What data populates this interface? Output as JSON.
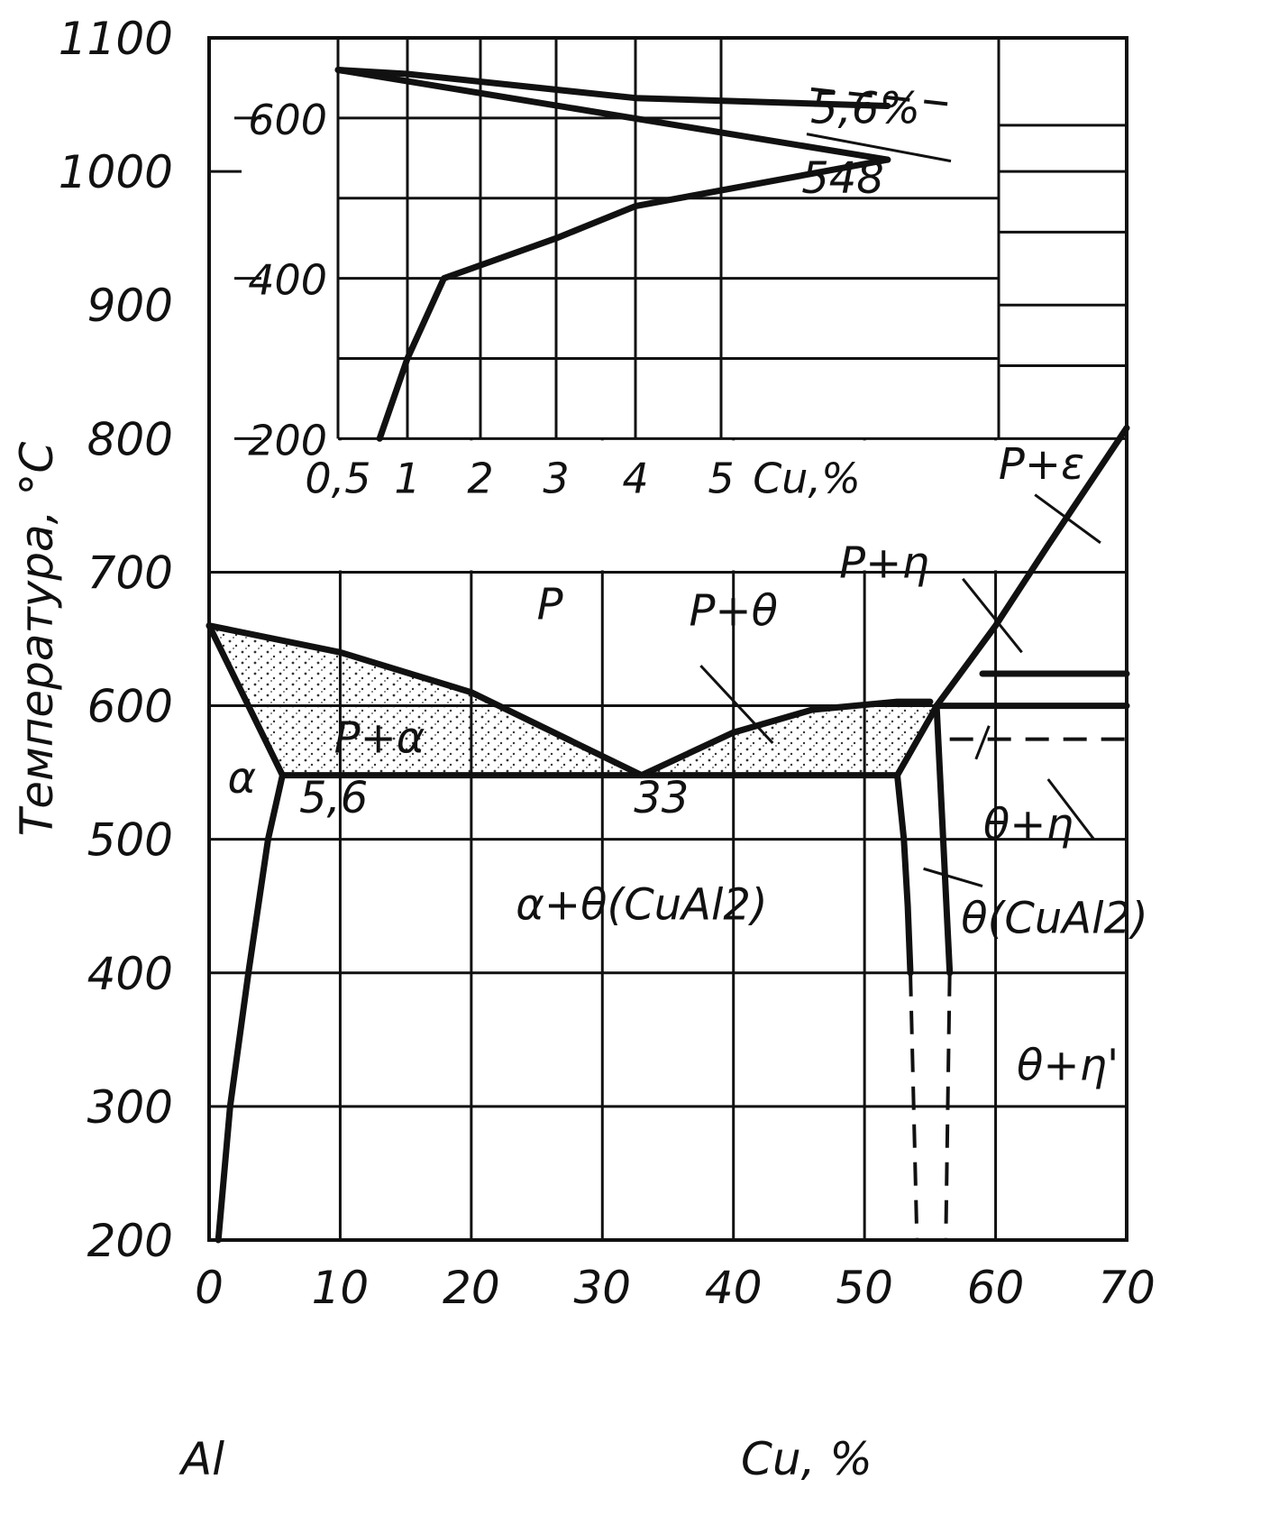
{
  "chart_data": {
    "type": "phase-diagram",
    "main": {
      "xlabel": "Cu, %",
      "x_origin_label": "Al",
      "ylabel": "Температура, °С",
      "xlim": [
        0,
        70
      ],
      "ylim": [
        200,
        1100
      ],
      "x_ticks": [
        "0",
        "10",
        "20",
        "30",
        "40",
        "50",
        "60",
        "70"
      ],
      "y_ticks": [
        "200",
        "300",
        "400",
        "500",
        "600",
        "700",
        "800",
        "900",
        "1000",
        "1100"
      ],
      "grid": true,
      "eutectic_temperature": 548,
      "al_melting_point": 660,
      "points": [
        {
          "label": "5,6",
          "cu": 5.6,
          "t": 548
        },
        {
          "label": "33",
          "cu": 33,
          "t": 548
        }
      ],
      "curves": [
        {
          "name": "liquidus-left",
          "points": [
            [
              0,
              660
            ],
            [
              10,
              640
            ],
            [
              20,
              610
            ],
            [
              33,
              548
            ]
          ]
        },
        {
          "name": "solidus-left",
          "points": [
            [
              0,
              660
            ],
            [
              5.6,
              548
            ]
          ]
        },
        {
          "name": "solvus-alpha",
          "points": [
            [
              5.6,
              548
            ],
            [
              4.5,
              500
            ],
            [
              3,
              400
            ],
            [
              1.6,
              300
            ],
            [
              0.7,
              200
            ]
          ]
        },
        {
          "name": "liquidus-right",
          "points": [
            [
              33,
              548
            ],
            [
              40,
              580
            ],
            [
              46,
              597
            ],
            [
              52.5,
              603
            ],
            [
              55,
              603
            ]
          ]
        },
        {
          "name": "eutectic-line",
          "points": [
            [
              5.6,
              548
            ],
            [
              33,
              548
            ],
            [
              52.5,
              548
            ]
          ]
        },
        {
          "name": "theta-left",
          "points": [
            [
              52.5,
              548
            ],
            [
              53,
              500
            ],
            [
              53.3,
              450
            ],
            [
              53.5,
              400
            ]
          ]
        },
        {
          "name": "theta-peritectic",
          "points": [
            [
              52.5,
              548
            ],
            [
              55,
              591
            ],
            [
              55.5,
              600
            ]
          ]
        },
        {
          "name": "eta-boundary",
          "points": [
            [
              55.5,
              600
            ],
            [
              56,
              500
            ],
            [
              56.5,
              400
            ]
          ]
        },
        {
          "name": "liquidus-eta-epsilon",
          "points": [
            [
              55.5,
              600
            ],
            [
              60,
              660
            ],
            [
              64,
              720
            ],
            [
              70,
              808
            ]
          ]
        },
        {
          "name": "peritectic-line",
          "points": [
            [
              55.5,
              600
            ],
            [
              70,
              600
            ]
          ]
        },
        {
          "name": "line-624",
          "points": [
            [
              59,
              624
            ],
            [
              70,
              624
            ]
          ]
        }
      ],
      "phase_labels": [
        "P",
        "P+α",
        "α",
        "α+θ(CuAl2)",
        "P+θ",
        "P+η",
        "P+ε",
        "θ+η",
        "θ(CuAl2)",
        "θ+η'"
      ]
    },
    "inset": {
      "xlabel": "Cu,%",
      "x_ticks": [
        "0,5",
        "1",
        "2",
        "3",
        "4",
        "5"
      ],
      "y_ticks": [
        "200",
        "400",
        "600"
      ],
      "eutectic_temperature": 548,
      "max_solubility": 5.6,
      "annotations": [
        "5,6%",
        "548"
      ],
      "curves": [
        {
          "name": "solvus",
          "points": [
            [
              0.8,
              200
            ],
            [
              1,
              300
            ],
            [
              1.5,
              400
            ],
            [
              3,
              450
            ],
            [
              4,
              490
            ],
            [
              5.6,
              548
            ]
          ]
        },
        {
          "name": "solidus",
          "points": [
            [
              0.5,
              660
            ],
            [
              5.6,
              548
            ]
          ]
        },
        {
          "name": "liquidus",
          "points": [
            [
              0.5,
              660
            ],
            [
              1,
              655
            ],
            [
              4,
              625
            ],
            [
              5.6,
              615
            ]
          ]
        }
      ]
    }
  }
}
